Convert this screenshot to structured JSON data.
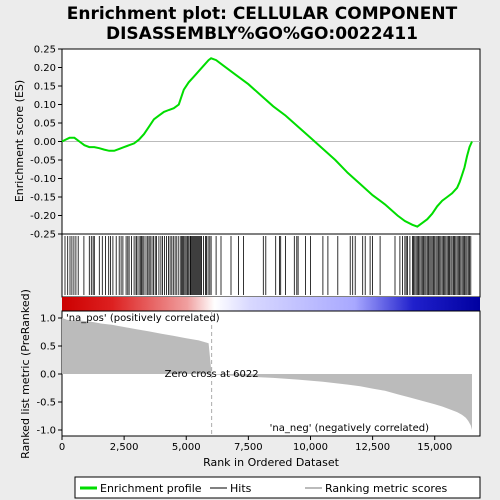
{
  "chart_data": {
    "type": "line",
    "title_line1": "Enrichment plot: CELLULAR COMPONENT",
    "title_line2": "DISASSEMBLY%GO%GO:0022411",
    "xlabel": "Rank in Ordered Dataset",
    "ylabel_top": "Enrichment score (ES)",
    "ylabel_bottom": "Ranked list metric (PreRanked)",
    "x_range": [
      0,
      16500
    ],
    "x_ticks": [
      0,
      2500,
      5000,
      7500,
      10000,
      12500,
      15000
    ],
    "x_tick_labels": [
      "0",
      "2,500",
      "5,000",
      "7,500",
      "10,000",
      "12,500",
      "15,000"
    ],
    "es_ylim": [
      -0.25,
      0.25
    ],
    "es_ticks": [
      -0.25,
      -0.2,
      -0.15,
      -0.1,
      -0.05,
      0.0,
      0.05,
      0.1,
      0.15,
      0.2,
      0.25
    ],
    "es_tick_labels": [
      "-0.25",
      "-0.20",
      "-0.15",
      "-0.10",
      "-0.05",
      "0.00",
      "0.05",
      "0.10",
      "0.15",
      "0.20",
      "0.25"
    ],
    "metric_ylim": [
      -1.0,
      1.0
    ],
    "metric_ticks": [
      -1.0,
      -0.5,
      0.0,
      0.5,
      1.0
    ],
    "metric_tick_labels": [
      "-1.0",
      "-0.5",
      "0.0",
      "0.5",
      "1.0"
    ],
    "zero_cross_label": "Zero cross at 6022",
    "zero_cross_rank": 6022,
    "pos_label": "'na_pos' (positively correlated)",
    "neg_label": "'na_neg' (negatively correlated)",
    "n_genes": 16500,
    "es_profile": {
      "x": [
        0,
        150,
        300,
        500,
        700,
        900,
        1100,
        1300,
        1500,
        1700,
        1900,
        2100,
        2300,
        2500,
        2700,
        2900,
        3100,
        3300,
        3500,
        3700,
        3900,
        4100,
        4300,
        4500,
        4700,
        4900,
        5100,
        5300,
        5500,
        5700,
        5900,
        6000,
        6200,
        6500,
        7000,
        7500,
        8000,
        8500,
        9000,
        9500,
        10000,
        10500,
        11000,
        11500,
        12000,
        12500,
        13000,
        13500,
        13800,
        14100,
        14300,
        14500,
        14700,
        14900,
        15100,
        15300,
        15500,
        15700,
        15900,
        16000,
        16100,
        16200,
        16300,
        16400,
        16500
      ],
      "y": [
        0.0,
        0.005,
        0.01,
        0.01,
        0.0,
        -0.01,
        -0.015,
        -0.015,
        -0.018,
        -0.022,
        -0.025,
        -0.025,
        -0.02,
        -0.015,
        -0.01,
        -0.005,
        0.005,
        0.02,
        0.04,
        0.06,
        0.07,
        0.08,
        0.085,
        0.09,
        0.1,
        0.14,
        0.16,
        0.175,
        0.19,
        0.205,
        0.22,
        0.225,
        0.22,
        0.205,
        0.18,
        0.155,
        0.125,
        0.095,
        0.07,
        0.04,
        0.01,
        -0.02,
        -0.05,
        -0.085,
        -0.115,
        -0.145,
        -0.17,
        -0.2,
        -0.215,
        -0.225,
        -0.23,
        -0.22,
        -0.21,
        -0.195,
        -0.175,
        -0.16,
        -0.15,
        -0.14,
        -0.125,
        -0.11,
        -0.09,
        -0.07,
        -0.04,
        -0.015,
        0.0
      ]
    },
    "metric_profile": {
      "x": [
        0,
        200,
        400,
        800,
        1200,
        1600,
        2000,
        2500,
        3000,
        3500,
        4000,
        4500,
        5000,
        5500,
        5900,
        6022,
        6500,
        7500,
        8500,
        9500,
        10500,
        11500,
        12000,
        12500,
        13000,
        13500,
        14000,
        14500,
        15000,
        15300,
        15600,
        15900,
        16100,
        16250,
        16350,
        16450,
        16500
      ],
      "y": [
        1.0,
        0.97,
        0.96,
        0.95,
        0.93,
        0.9,
        0.88,
        0.84,
        0.8,
        0.76,
        0.72,
        0.68,
        0.64,
        0.6,
        0.55,
        0.0,
        -0.02,
        -0.05,
        -0.07,
        -0.1,
        -0.14,
        -0.19,
        -0.22,
        -0.26,
        -0.3,
        -0.36,
        -0.42,
        -0.48,
        -0.54,
        -0.58,
        -0.63,
        -0.68,
        -0.73,
        -0.78,
        -0.84,
        -0.92,
        -1.0
      ]
    },
    "hit_ranks": [
      120,
      230,
      320,
      400,
      480,
      560,
      650,
      880,
      1100,
      1180,
      1250,
      1300,
      1500,
      1620,
      1750,
      1880,
      1950,
      2050,
      2180,
      2300,
      2380,
      2450,
      2580,
      2650,
      2700,
      2800,
      2900,
      2980,
      3020,
      3100,
      3150,
      3200,
      3250,
      3300,
      3380,
      3450,
      3500,
      3550,
      3620,
      3680,
      3750,
      3800,
      3900,
      3980,
      4050,
      4120,
      4200,
      4280,
      4350,
      4420,
      4480,
      4550,
      4620,
      4700,
      4780,
      4820,
      4860,
      4900,
      4950,
      5000,
      5050,
      5100,
      5150,
      5180,
      5220,
      5260,
      5300,
      5340,
      5380,
      5420,
      5460,
      5500,
      5540,
      5580,
      5620,
      5700,
      5780,
      5820,
      5880,
      5950,
      6000,
      6200,
      6400,
      6800,
      7100,
      7300,
      8100,
      8200,
      8600,
      8750,
      8800,
      9000,
      9350,
      9450,
      9500,
      9800,
      10000,
      10500,
      10700,
      11100,
      11600,
      11700,
      11800,
      12100,
      12200,
      12400,
      12500,
      12800,
      13400,
      13600,
      13700,
      13800,
      13850,
      13900,
      14000,
      14100,
      14150,
      14200,
      14250,
      14300,
      14350,
      14400,
      14450,
      14500,
      14550,
      14600,
      14650,
      14700,
      14750,
      14800,
      14850,
      14900,
      14950,
      15000,
      15050,
      15100,
      15150,
      15200,
      15250,
      15300,
      15350,
      15400,
      15450,
      15500,
      15550,
      15600,
      15650,
      15700,
      15750,
      15800,
      15850,
      15900,
      15950,
      16000,
      16050,
      16100,
      16150,
      16200,
      16250,
      16300,
      16350,
      16400,
      16450
    ]
  },
  "legend": {
    "items": [
      {
        "label": "Enrichment profile",
        "color": "#00dd00"
      },
      {
        "label": "Hits",
        "color": "#000000"
      },
      {
        "label": "Ranking metric scores",
        "color": "#bbbbbb"
      }
    ]
  },
  "colors": {
    "profile": "#00dd00",
    "metric_fill": "#bbbbbb",
    "pos_end": "#dd0000",
    "neg_end": "#0000aa",
    "pos_text": "#cc0000",
    "neg_text": "#0000cc"
  }
}
